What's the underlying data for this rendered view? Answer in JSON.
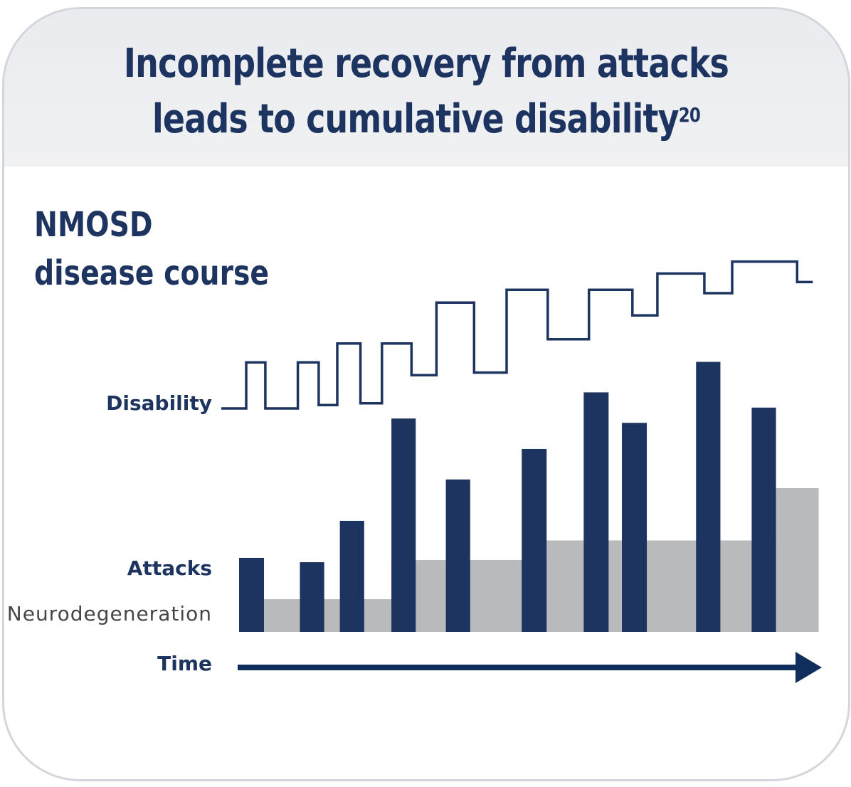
{
  "header": {
    "title_line1": "Incomplete recovery from attacks",
    "title_line2": "leads to cumulative disability",
    "title_reference": "20"
  },
  "subtitle": {
    "line1": "NMOSD",
    "line2": "disease course"
  },
  "labels": {
    "disability": "Disability",
    "attacks": "Attacks",
    "neurodegeneration": "Neurodegeneration",
    "time": "Time"
  },
  "colors": {
    "navy": "#1d3461",
    "gray": "#b9babc",
    "arrow": "#0f2e5c",
    "header_bg": "#eceef1"
  },
  "chart_data": {
    "type": "bar",
    "attacks": [
      {
        "start": 0.0,
        "end": 0.043,
        "height": 0.34
      },
      {
        "start": 0.105,
        "end": 0.147,
        "height": 0.32
      },
      {
        "start": 0.174,
        "end": 0.216,
        "height": 0.51
      },
      {
        "start": 0.263,
        "end": 0.305,
        "height": 0.98
      },
      {
        "start": 0.357,
        "end": 0.399,
        "height": 0.7
      },
      {
        "start": 0.488,
        "end": 0.531,
        "height": 0.84
      },
      {
        "start": 0.595,
        "end": 0.638,
        "height": 1.1
      },
      {
        "start": 0.661,
        "end": 0.704,
        "height": 0.96
      },
      {
        "start": 0.789,
        "end": 0.831,
        "height": 1.24
      },
      {
        "start": 0.885,
        "end": 0.927,
        "height": 1.03
      }
    ],
    "neurodegeneration_steps": [
      {
        "start": 0.0,
        "end": 0.263,
        "level": 0.15
      },
      {
        "start": 0.263,
        "end": 0.531,
        "level": 0.33
      },
      {
        "start": 0.531,
        "end": 0.927,
        "level": 0.42
      },
      {
        "start": 0.927,
        "end": 1.0,
        "level": 0.66
      }
    ],
    "disability_curve": [
      [
        0.0,
        0.0
      ],
      [
        0.043,
        0.0
      ],
      [
        0.043,
        0.54
      ],
      [
        0.076,
        0.54
      ],
      [
        0.076,
        0.0
      ],
      [
        0.132,
        0.0
      ],
      [
        0.132,
        0.54
      ],
      [
        0.168,
        0.54
      ],
      [
        0.168,
        0.04
      ],
      [
        0.2,
        0.04
      ],
      [
        0.2,
        0.76
      ],
      [
        0.24,
        0.76
      ],
      [
        0.24,
        0.06
      ],
      [
        0.277,
        0.06
      ],
      [
        0.277,
        0.76
      ],
      [
        0.328,
        0.76
      ],
      [
        0.328,
        0.39
      ],
      [
        0.371,
        0.39
      ],
      [
        0.371,
        1.24
      ],
      [
        0.436,
        1.24
      ],
      [
        0.436,
        0.42
      ],
      [
        0.492,
        0.42
      ],
      [
        0.492,
        1.39
      ],
      [
        0.563,
        1.39
      ],
      [
        0.563,
        0.81
      ],
      [
        0.634,
        0.81
      ],
      [
        0.634,
        1.39
      ],
      [
        0.709,
        1.39
      ],
      [
        0.709,
        1.09
      ],
      [
        0.752,
        1.09
      ],
      [
        0.752,
        1.58
      ],
      [
        0.833,
        1.58
      ],
      [
        0.833,
        1.35
      ],
      [
        0.881,
        1.35
      ],
      [
        0.881,
        1.72
      ],
      [
        0.993,
        1.72
      ],
      [
        0.993,
        1.48
      ],
      [
        1.02,
        1.48
      ]
    ]
  }
}
